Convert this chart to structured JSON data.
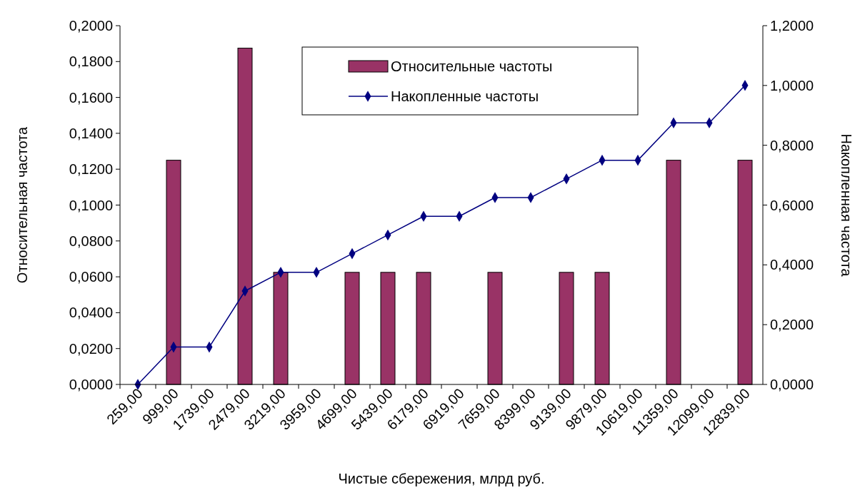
{
  "chart_data": {
    "type": "bar",
    "xlabel": "Чистые сбережения, млрд руб.",
    "ylabel": "Относительная частота",
    "y2label": "Накопленная частота",
    "categories": [
      "259,00",
      "999,00",
      "1739,00",
      "2479,00",
      "3219,00",
      "3959,00",
      "4699,00",
      "5439,00",
      "6179,00",
      "6919,00",
      "7659,00",
      "8399,00",
      "9139,00",
      "9879,00",
      "10619,00",
      "11359,00",
      "12099,00",
      "12839,00"
    ],
    "series": [
      {
        "name": "Относительные частоты",
        "color": "#993366",
        "values": [
          0,
          0.125,
          0,
          0.1875,
          0.0625,
          0,
          0.0625,
          0.0625,
          0.0625,
          0,
          0.0625,
          0,
          0.0625,
          0.0625,
          0,
          0.125,
          0,
          0.125
        ]
      },
      {
        "name": "Накопленные частоты",
        "type": "line",
        "axis": "y2",
        "color": "#000080",
        "marker": "diamond",
        "values": [
          0,
          0.125,
          0.125,
          0.3125,
          0.375,
          0.375,
          0.4375,
          0.5,
          0.5625,
          0.5625,
          0.625,
          0.625,
          0.6875,
          0.75,
          0.75,
          0.875,
          0.875,
          1.0
        ]
      }
    ],
    "ylim": [
      0,
      0.2
    ],
    "yticks": [
      {
        "value": 0,
        "label": "0,0000"
      },
      {
        "value": 0.02,
        "label": "0,0200"
      },
      {
        "value": 0.04,
        "label": "0,0400"
      },
      {
        "value": 0.06,
        "label": "0,0600"
      },
      {
        "value": 0.08,
        "label": "0,0800"
      },
      {
        "value": 0.1,
        "label": "0,1000"
      },
      {
        "value": 0.12,
        "label": "0,1200"
      },
      {
        "value": 0.14,
        "label": "0,1400"
      },
      {
        "value": 0.16,
        "label": "0,1600"
      },
      {
        "value": 0.18,
        "label": "0,1800"
      },
      {
        "value": 0.2,
        "label": "0,2000"
      }
    ],
    "y2lim": [
      0,
      1.2
    ],
    "y2ticks": [
      {
        "value": 0,
        "label": "0,0000"
      },
      {
        "value": 0.2,
        "label": "0,2000"
      },
      {
        "value": 0.4,
        "label": "0,4000"
      },
      {
        "value": 0.6,
        "label": "0,6000"
      },
      {
        "value": 0.8,
        "label": "0,8000"
      },
      {
        "value": 1,
        "label": "1,0000"
      },
      {
        "value": 1.2,
        "label": "1,2000"
      }
    ],
    "legend": "top",
    "grid": false
  }
}
